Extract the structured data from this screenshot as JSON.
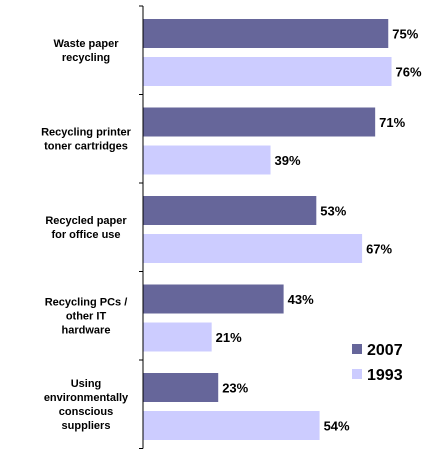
{
  "chart_data": {
    "type": "bar",
    "orientation": "horizontal",
    "title": "",
    "xlabel": "",
    "ylabel": "",
    "categories": [
      [
        "Waste paper",
        "recycling"
      ],
      [
        "Recycling printer",
        "toner cartridges"
      ],
      [
        "Recycled paper",
        "for office use"
      ],
      [
        "Recycling PCs /",
        "other IT",
        "hardware"
      ],
      [
        "Using",
        "environmentally",
        "conscious",
        "suppliers"
      ]
    ],
    "series": [
      {
        "name": "2007",
        "color": "#66669a",
        "values": [
          75,
          71,
          53,
          43,
          23
        ],
        "labels": [
          "75%",
          "71%",
          "53%",
          "43%",
          "23%"
        ]
      },
      {
        "name": "1993",
        "color": "#ccccff",
        "values": [
          76,
          39,
          67,
          21,
          54
        ],
        "labels": [
          "76%",
          "39%",
          "67%",
          "21%",
          "54%"
        ]
      }
    ],
    "xlim": [
      0,
      100
    ],
    "grid": false,
    "legend_position": "right"
  }
}
